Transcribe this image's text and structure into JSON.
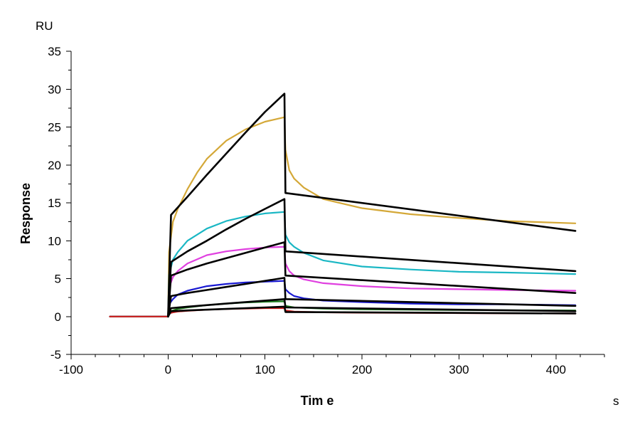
{
  "chart_data": {
    "type": "line",
    "ylabel": "Response",
    "xlabel": "Tim e",
    "y_unit": "RU",
    "x_unit": "s",
    "xlim": [
      -100,
      450
    ],
    "ylim": [
      -5,
      35
    ],
    "x_ticks": [
      -100,
      0,
      100,
      200,
      300,
      400
    ],
    "y_ticks": [
      -5,
      0,
      5,
      10,
      15,
      20,
      25,
      30,
      35
    ],
    "legend": "none",
    "grid": false,
    "association_end": 120,
    "series": [
      {
        "color": "#d4a838",
        "x": [
          -60,
          0,
          1,
          5,
          10,
          20,
          30,
          40,
          60,
          80,
          100,
          120,
          121,
          125,
          130,
          140,
          160,
          200,
          250,
          300,
          350,
          420
        ],
        "y": [
          0,
          0,
          8.5,
          12.5,
          14.2,
          16.8,
          19,
          20.8,
          23.2,
          24.7,
          25.7,
          26.3,
          22,
          19.3,
          18.2,
          17,
          15.5,
          14.3,
          13.5,
          13,
          12.6,
          12.3
        ]
      },
      {
        "color": "#1ab7c4",
        "x": [
          -60,
          0,
          1,
          5,
          10,
          20,
          40,
          60,
          80,
          100,
          120,
          121,
          125,
          130,
          140,
          160,
          200,
          250,
          300,
          350,
          420
        ],
        "y": [
          0,
          0,
          5.5,
          7.5,
          8.5,
          10,
          11.6,
          12.6,
          13.2,
          13.6,
          13.8,
          10.8,
          9.8,
          9.2,
          8.4,
          7.4,
          6.6,
          6.2,
          5.9,
          5.8,
          5.6
        ]
      },
      {
        "color": "#e040e0",
        "x": [
          -60,
          0,
          1,
          5,
          10,
          20,
          40,
          60,
          80,
          100,
          120,
          121,
          125,
          130,
          140,
          160,
          200,
          250,
          300,
          350,
          420
        ],
        "y": [
          0,
          0,
          3.8,
          5.2,
          6,
          7,
          8.1,
          8.6,
          8.9,
          9.1,
          9.2,
          7,
          6,
          5.4,
          4.9,
          4.4,
          4,
          3.7,
          3.6,
          3.5,
          3.4
        ]
      },
      {
        "color": "#1a1ad2",
        "x": [
          -60,
          0,
          1,
          5,
          10,
          20,
          40,
          60,
          80,
          100,
          120,
          121,
          125,
          130,
          140,
          160,
          200,
          250,
          300,
          350,
          420
        ],
        "y": [
          0,
          0,
          1.6,
          2.3,
          2.9,
          3.4,
          4,
          4.3,
          4.5,
          4.6,
          4.7,
          3.6,
          3.1,
          2.7,
          2.4,
          2.1,
          1.9,
          1.7,
          1.6,
          1.6,
          1.5
        ]
      },
      {
        "color": "#1b7a1b",
        "x": [
          -60,
          0,
          1,
          5,
          10,
          20,
          40,
          60,
          80,
          100,
          120,
          121,
          130,
          160,
          200,
          300,
          420
        ],
        "y": [
          0,
          0,
          0.6,
          0.8,
          1,
          1.2,
          1.5,
          1.7,
          1.85,
          1.95,
          2,
          1.4,
          1.2,
          1.05,
          0.95,
          0.85,
          0.8
        ]
      },
      {
        "color": "#d02020",
        "x": [
          -60,
          0,
          1,
          5,
          10,
          20,
          40,
          60,
          80,
          100,
          120,
          121,
          130,
          160,
          200,
          300,
          420
        ],
        "y": [
          0,
          0,
          0.4,
          0.55,
          0.65,
          0.75,
          0.9,
          1,
          1.05,
          1.1,
          1.1,
          0.8,
          0.65,
          0.55,
          0.5,
          0.45,
          0.4
        ]
      }
    ],
    "fits": [
      {
        "x": [
          0,
          3,
          20,
          40,
          60,
          80,
          100,
          120,
          121,
          420
        ],
        "y": [
          0,
          13.4,
          15.8,
          18.7,
          21.5,
          24.3,
          27,
          29.4,
          16.3,
          11.3
        ]
      },
      {
        "x": [
          0,
          3,
          20,
          40,
          60,
          80,
          100,
          120,
          121,
          420
        ],
        "y": [
          0,
          7.2,
          8.6,
          10,
          11.5,
          12.9,
          14.2,
          15.5,
          8.6,
          6.0
        ]
      },
      {
        "x": [
          0,
          3,
          20,
          40,
          60,
          80,
          100,
          120,
          121,
          420
        ],
        "y": [
          0,
          5.4,
          6.2,
          7,
          7.7,
          8.4,
          9.1,
          9.8,
          5.4,
          3.1
        ]
      },
      {
        "x": [
          0,
          3,
          20,
          40,
          60,
          80,
          100,
          120,
          121,
          420
        ],
        "y": [
          0,
          2.7,
          3.1,
          3.5,
          3.9,
          4.3,
          4.7,
          5.1,
          2.3,
          1.4
        ]
      },
      {
        "x": [
          0,
          3,
          20,
          60,
          100,
          120,
          121,
          420
        ],
        "y": [
          0,
          1.1,
          1.3,
          1.7,
          2.1,
          2.3,
          1.2,
          0.7
        ]
      },
      {
        "x": [
          0,
          3,
          20,
          60,
          100,
          120,
          121,
          420
        ],
        "y": [
          0,
          0.7,
          0.8,
          1.0,
          1.2,
          1.3,
          0.6,
          0.4
        ]
      }
    ]
  }
}
